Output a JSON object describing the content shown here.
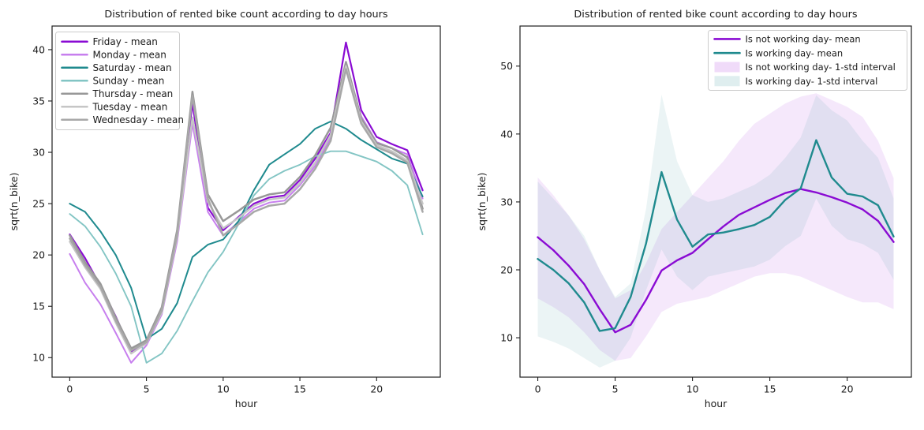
{
  "figure": {
    "background": "#ffffff",
    "text_color": "#1a1a1a",
    "spine_color": "#1f1f1f"
  },
  "chart_data": [
    {
      "type": "line",
      "title": "Distribution of rented bike count according to day hours",
      "xlabel": "hour",
      "ylabel": "sqrt(n_bike)",
      "x": [
        0,
        1,
        2,
        3,
        4,
        5,
        6,
        7,
        8,
        9,
        10,
        11,
        12,
        13,
        14,
        15,
        16,
        17,
        18,
        19,
        20,
        21,
        22,
        23
      ],
      "xlim": [
        -1.15,
        24.15
      ],
      "ylim": [
        8.1,
        42.3
      ],
      "xticks": [
        0,
        5,
        10,
        15,
        20
      ],
      "yticks": [
        10,
        15,
        20,
        25,
        30,
        35,
        40
      ],
      "grid": false,
      "legend_position": "upper left",
      "series": [
        {
          "name": "Friday - mean",
          "color": "#8a0bd3",
          "linewidth": 2.2,
          "values": [
            22.0,
            19.7,
            17.0,
            14.0,
            10.6,
            11.5,
            14.5,
            21.8,
            34.8,
            24.6,
            22.4,
            23.7,
            25.0,
            25.6,
            25.8,
            27.3,
            29.4,
            31.9,
            40.7,
            34.1,
            31.5,
            30.8,
            30.2,
            26.3
          ]
        },
        {
          "name": "Monday - mean",
          "color": "#c77fee",
          "linewidth": 2.0,
          "values": [
            20.1,
            17.3,
            15.2,
            12.4,
            9.5,
            11.2,
            14.2,
            21.3,
            32.8,
            24.2,
            21.9,
            23.2,
            24.5,
            25.1,
            25.3,
            26.8,
            28.7,
            31.4,
            38.3,
            33.5,
            31.0,
            30.4,
            29.8,
            25.5
          ]
        },
        {
          "name": "Saturday - mean",
          "color": "#1f8a8e",
          "linewidth": 2.0,
          "values": [
            25.0,
            24.2,
            22.3,
            20.0,
            16.8,
            11.8,
            12.8,
            15.3,
            19.8,
            21.0,
            21.5,
            23.3,
            26.3,
            28.8,
            29.8,
            30.8,
            32.3,
            33.0,
            32.3,
            31.2,
            30.3,
            29.4,
            28.9,
            25.7
          ]
        },
        {
          "name": "Sunday - mean",
          "color": "#83c5c4",
          "linewidth": 1.9,
          "values": [
            24.0,
            22.8,
            20.8,
            18.2,
            15.0,
            9.5,
            10.4,
            12.6,
            15.5,
            18.3,
            20.3,
            23.0,
            25.8,
            27.4,
            28.2,
            28.8,
            29.6,
            30.1,
            30.1,
            29.6,
            29.1,
            28.2,
            26.8,
            22.0
          ]
        },
        {
          "name": "Thursday - mean",
          "color": "#989898",
          "linewidth": 2.5,
          "values": [
            21.9,
            19.3,
            17.2,
            13.9,
            10.9,
            11.7,
            14.9,
            22.4,
            35.9,
            25.9,
            23.3,
            24.3,
            25.4,
            25.9,
            26.1,
            27.6,
            29.7,
            32.4,
            38.8,
            33.3,
            30.9,
            30.4,
            29.5,
            24.5
          ]
        },
        {
          "name": "Tuesday - mean",
          "color": "#c6c6c6",
          "linewidth": 2.4,
          "values": [
            21.3,
            18.8,
            16.7,
            13.4,
            10.4,
            11.4,
            14.4,
            21.7,
            33.4,
            25.2,
            22.6,
            23.6,
            24.8,
            25.4,
            25.6,
            27.0,
            29.0,
            31.7,
            38.4,
            33.0,
            30.7,
            30.1,
            29.2,
            25.0
          ]
        },
        {
          "name": "Wednesday - mean",
          "color": "#a8a8a8",
          "linewidth": 2.5,
          "values": [
            21.6,
            19.0,
            16.9,
            13.6,
            10.7,
            11.5,
            14.6,
            22.0,
            35.5,
            25.5,
            21.9,
            23.0,
            24.2,
            24.8,
            25.0,
            26.4,
            28.4,
            31.1,
            38.1,
            32.8,
            30.5,
            29.9,
            29.0,
            24.2
          ]
        }
      ],
      "bands": []
    },
    {
      "type": "line",
      "title": "Distribution of rented bike count according to day hours",
      "xlabel": "hour",
      "ylabel": "sqrt(n_bike)",
      "x": [
        0,
        1,
        2,
        3,
        4,
        5,
        6,
        7,
        8,
        9,
        10,
        11,
        12,
        13,
        14,
        15,
        16,
        17,
        18,
        19,
        20,
        21,
        22,
        23
      ],
      "xlim": [
        -1.15,
        24.15
      ],
      "ylim": [
        4.2,
        55.9
      ],
      "xticks": [
        0,
        5,
        10,
        15,
        20
      ],
      "yticks": [
        10,
        20,
        30,
        40,
        50
      ],
      "grid": false,
      "legend_position": "upper right",
      "series": [
        {
          "name": "Is not working day- mean",
          "color": "#8a0bd3",
          "linewidth": 2.4,
          "values": [
            24.8,
            22.9,
            20.6,
            17.9,
            14.2,
            10.8,
            11.9,
            15.6,
            19.9,
            21.4,
            22.5,
            24.5,
            26.4,
            28.1,
            29.2,
            30.3,
            31.3,
            31.9,
            31.4,
            30.7,
            29.9,
            28.9,
            27.2,
            24.1
          ]
        },
        {
          "name": "Is working day- mean",
          "color": "#1f8a8e",
          "linewidth": 2.4,
          "values": [
            21.6,
            20.0,
            18.0,
            15.2,
            11.0,
            11.4,
            16.0,
            23.9,
            34.4,
            27.4,
            23.4,
            25.2,
            25.5,
            26.0,
            26.6,
            27.8,
            30.3,
            32.0,
            39.1,
            33.6,
            31.2,
            30.8,
            29.5,
            24.9
          ]
        }
      ],
      "bands": [
        {
          "name": "Is not working day- 1-std interval",
          "color": "#9400d3",
          "opacity": 0.09,
          "upper": [
            33.6,
            31.0,
            28.0,
            24.5,
            20.0,
            15.8,
            17.0,
            21.0,
            26.0,
            28.5,
            31.0,
            33.5,
            36.0,
            39.0,
            41.5,
            43.0,
            44.5,
            45.5,
            46.0,
            45.0,
            44.0,
            42.5,
            39.0,
            33.5
          ],
          "lower": [
            15.8,
            14.5,
            13.0,
            10.8,
            8.2,
            6.6,
            7.0,
            10.2,
            13.8,
            15.0,
            15.5,
            16.0,
            17.0,
            18.0,
            19.0,
            19.5,
            19.5,
            19.0,
            18.0,
            17.0,
            16.0,
            15.2,
            15.2,
            14.2
          ]
        },
        {
          "name": "Is working day- 1-std interval",
          "color": "#1f8a8e",
          "opacity": 0.09,
          "upper": [
            33.0,
            30.5,
            28.0,
            25.0,
            20.0,
            16.0,
            18.0,
            29.0,
            45.8,
            36.0,
            31.0,
            30.0,
            30.5,
            31.5,
            32.5,
            34.0,
            36.5,
            39.5,
            45.7,
            43.5,
            42.0,
            39.0,
            36.5,
            30.5
          ],
          "lower": [
            10.2,
            9.4,
            8.4,
            7.0,
            5.6,
            6.6,
            10.0,
            17.0,
            23.0,
            19.0,
            17.0,
            19.0,
            19.5,
            20.0,
            20.5,
            21.5,
            23.5,
            25.0,
            30.5,
            26.5,
            24.5,
            23.8,
            22.5,
            18.5
          ]
        }
      ]
    }
  ]
}
